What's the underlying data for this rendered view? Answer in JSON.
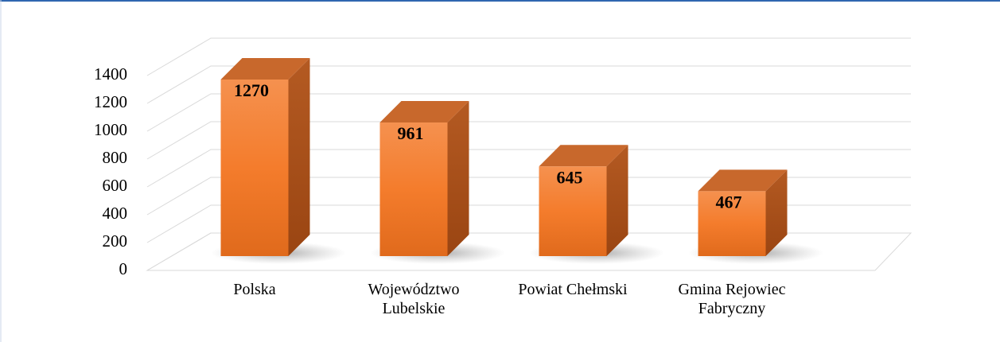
{
  "chart_data": {
    "type": "bar3d",
    "categories": [
      "Polska",
      "Województwo Lubelskie",
      "Powiat Chełmski",
      "Gmina Rejowiec Fabryczny"
    ],
    "values": [
      1270,
      961,
      645,
      467
    ],
    "color": "#f47c2c",
    "ylim": [
      0,
      1400
    ],
    "yticks": [
      0,
      200,
      400,
      600,
      800,
      1000,
      1200,
      1400
    ],
    "grid": true
  }
}
